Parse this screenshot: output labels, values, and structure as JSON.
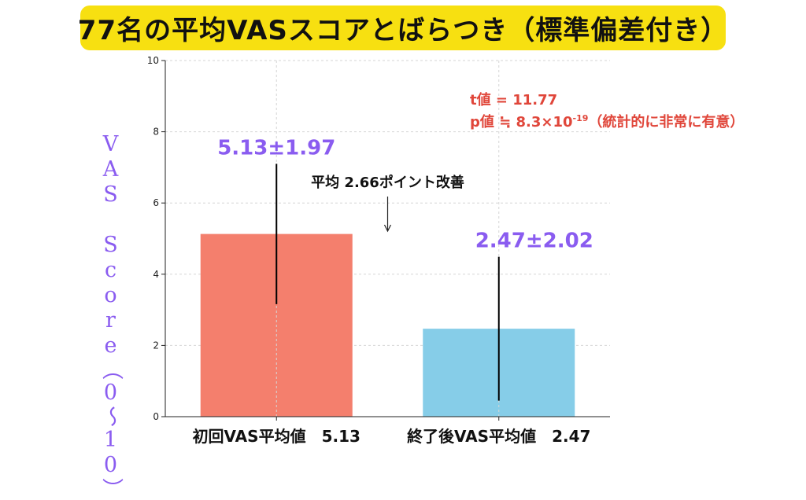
{
  "title": "77名の平均VASスコアとばらつき（標準偏差付き）",
  "colors": {
    "banner": "#f7e011",
    "purple": "#8a5cf0",
    "red": "#e0463a",
    "bar_initial": "#f47f6d",
    "bar_final": "#86cde8"
  },
  "stats": {
    "t_line": "t値 = 11.77",
    "p_prefix": "p値 ≒ 8.3×10",
    "p_exp": "-19",
    "p_suffix": "（統計的に非常に有意）"
  },
  "chart_data": {
    "type": "bar",
    "title": "77名の平均VASスコアとばらつき（標準偏差付き）",
    "ylabel": "VAS Score（0〜10）",
    "ylim": [
      0,
      10
    ],
    "yticks": [
      0,
      2,
      4,
      6,
      8,
      10
    ],
    "grid": true,
    "categories": [
      "初回VAS平均値　5.13",
      "終了後VAS平均値　2.47"
    ],
    "values": [
      5.13,
      2.47
    ],
    "errors": [
      1.97,
      2.02
    ],
    "value_labels": [
      "5.13±1.97",
      "2.47±2.02"
    ],
    "annotation": "平均 2.66ポイント改善"
  }
}
